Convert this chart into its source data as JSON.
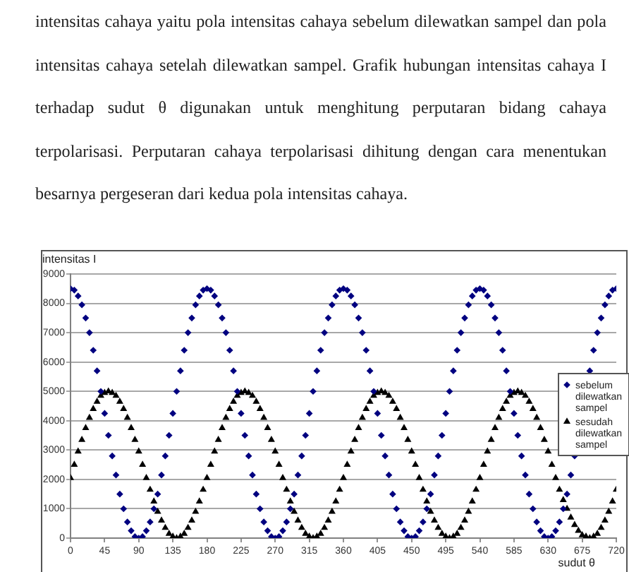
{
  "chart_data": {
    "type": "scatter",
    "annotations": [
      "intensitas cahaya yaitu pola intensitas cahaya sebelum dilewatkan sampel dan pola intensitas cahaya setelah dilewatkan sampel. Grafik hubungan intensitas cahaya I terhadap sudut θ digunakan untuk menghitung perputaran bidang cahaya terpolarisasi. Perputaran cahaya terpolarisasi dihitung dengan cara menentukan besarnya pergeseran dari kedua pola intensitas cahaya."
    ],
    "xlabel": "sudut θ",
    "ylabel": "intensitas I",
    "x": [
      0,
      5,
      10,
      15,
      20,
      25,
      30,
      35,
      40,
      45,
      50,
      55,
      60,
      65,
      70,
      75,
      80,
      85,
      90,
      95,
      100,
      105,
      110,
      115,
      120,
      125,
      130,
      135,
      140,
      145,
      150,
      155,
      160,
      165,
      170,
      175,
      180,
      185,
      190,
      195,
      200,
      205,
      210,
      215,
      220,
      225,
      230,
      235,
      240,
      245,
      250,
      255,
      260,
      265,
      270,
      275,
      280,
      285,
      290,
      295,
      300,
      305,
      310,
      315,
      320,
      325,
      330,
      335,
      340,
      345,
      350,
      355,
      360,
      365,
      370,
      375,
      380,
      385,
      390,
      395,
      400,
      405,
      410,
      415,
      420,
      425,
      430,
      435,
      440,
      445,
      450,
      455,
      460,
      465,
      470,
      475,
      480,
      485,
      490,
      495,
      500,
      505,
      510,
      515,
      520,
      525,
      530,
      535,
      540,
      545,
      550,
      555,
      560,
      565,
      570,
      575,
      580,
      585,
      590,
      595,
      600,
      605,
      610,
      615,
      620,
      625,
      630,
      635,
      640,
      645,
      650,
      655,
      660,
      665,
      670,
      675,
      680,
      685,
      690,
      695,
      700,
      705,
      710,
      715,
      720
    ],
    "series": [
      {
        "name": "sebelum dilewatkan sampel",
        "color": "#000080",
        "marker": "diamond",
        "values": [
          8500,
          8450,
          8250,
          7950,
          7500,
          7000,
          6400,
          5700,
          5000,
          4250,
          3500,
          2800,
          2150,
          1500,
          1000,
          550,
          250,
          50,
          0,
          50,
          250,
          550,
          1000,
          1500,
          2150,
          2800,
          3500,
          4250,
          5000,
          5700,
          6400,
          7000,
          7500,
          7950,
          8250,
          8450,
          8500,
          8450,
          8250,
          7950,
          7500,
          7000,
          6400,
          5700,
          5000,
          4250,
          3500,
          2800,
          2150,
          1500,
          1000,
          550,
          250,
          50,
          0,
          50,
          250,
          550,
          1000,
          1500,
          2150,
          2800,
          3500,
          4250,
          5000,
          5700,
          6400,
          7000,
          7500,
          7950,
          8250,
          8450,
          8500,
          8450,
          8250,
          7950,
          7500,
          7000,
          6400,
          5700,
          5000,
          4250,
          3500,
          2800,
          2150,
          1500,
          1000,
          550,
          250,
          50,
          0,
          50,
          250,
          550,
          1000,
          1500,
          2150,
          2800,
          3500,
          4250,
          5000,
          5700,
          6400,
          7000,
          7500,
          7950,
          8250,
          8450,
          8500,
          8450,
          8250,
          7950,
          7500,
          7000,
          6400,
          5700,
          5000,
          4250,
          3500,
          2800,
          2150,
          1500,
          1000,
          550,
          250,
          50,
          0,
          50,
          250,
          550,
          1000,
          1500,
          2150,
          2800,
          null,
          null,
          null,
          5700,
          6400,
          7000,
          7500,
          7950,
          8250,
          8450,
          8500
        ]
      },
      {
        "name": "sesudah dilewatkan sampel",
        "color": "#000000",
        "marker": "triangle",
        "values": [
          2050,
          2500,
          2950,
          3350,
          3750,
          4100,
          4400,
          4650,
          4850,
          4950,
          5000,
          4950,
          4850,
          4650,
          4400,
          4100,
          3750,
          3350,
          2950,
          2500,
          2050,
          1650,
          1250,
          900,
          600,
          350,
          150,
          50,
          0,
          50,
          150,
          350,
          600,
          900,
          1250,
          1650,
          2050,
          2500,
          2950,
          3350,
          3750,
          4100,
          4400,
          4650,
          4850,
          4950,
          5000,
          4950,
          4850,
          4650,
          4400,
          4100,
          3750,
          3350,
          2950,
          2500,
          2050,
          1650,
          1250,
          900,
          600,
          350,
          150,
          50,
          0,
          50,
          150,
          350,
          600,
          900,
          1250,
          1650,
          2050,
          2500,
          2950,
          3350,
          3750,
          4100,
          4400,
          4650,
          4850,
          4950,
          5000,
          4950,
          4850,
          4650,
          4400,
          4100,
          3750,
          3350,
          2950,
          2500,
          2050,
          1650,
          1250,
          900,
          600,
          350,
          150,
          50,
          0,
          50,
          150,
          350,
          600,
          900,
          1250,
          1650,
          2050,
          2500,
          2950,
          3350,
          3750,
          4100,
          4400,
          4650,
          4850,
          4950,
          5000,
          4950,
          4850,
          4650,
          4400,
          4100,
          3750,
          3350,
          2950,
          2500,
          2050,
          1650,
          1300,
          1000,
          700,
          450,
          250,
          100,
          50,
          0,
          50,
          150,
          350,
          600,
          900,
          1250,
          1650
        ]
      }
    ],
    "xlim": [
      0,
      720
    ],
    "xticks": [
      0,
      45,
      90,
      135,
      180,
      225,
      270,
      315,
      360,
      405,
      450,
      495,
      540,
      585,
      630,
      675,
      720
    ],
    "ylim": [
      0,
      9000
    ],
    "yticks": [
      0,
      1000,
      2000,
      3000,
      4000,
      5000,
      6000,
      7000,
      8000,
      9000
    ],
    "grid": "y",
    "legend": "right"
  }
}
